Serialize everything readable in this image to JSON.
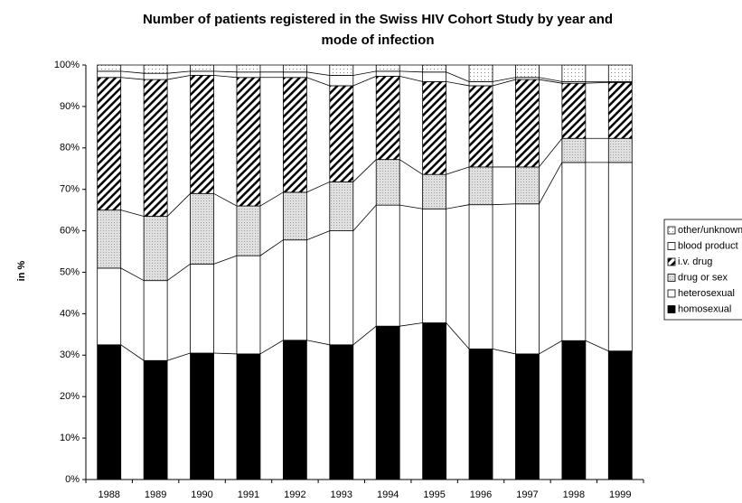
{
  "chart_data": {
    "type": "stacked_bar",
    "title": [
      "Number of patients registered in the Swiss HIV Cohort Study by year and",
      "mode of infection"
    ],
    "y_label": "in %",
    "categories": [
      "1988",
      "1989",
      "1990",
      "1991",
      "1992",
      "1993",
      "1994",
      "1995",
      "1996",
      "1997",
      "1998",
      "1999"
    ],
    "series": [
      {
        "name": "homosexual",
        "color": "#000000",
        "pattern": "solid",
        "values": [
          32.5,
          28.7,
          30.5,
          30.3,
          33.6,
          32.5,
          37,
          37.8,
          31.5,
          30.3,
          33.5,
          31
        ]
      },
      {
        "name": "heterosexual",
        "color": "#ffffff",
        "pattern": "solid",
        "values": [
          18.5,
          19.3,
          21.5,
          23.7,
          24.2,
          27.5,
          29.2,
          27.5,
          34.8,
          36.2,
          43,
          45.5
        ]
      },
      {
        "name": "drug or sex",
        "color": "#a0a0a0",
        "pattern": "dots",
        "values": [
          14,
          15.5,
          17,
          12,
          11.5,
          11.8,
          11,
          8.3,
          9.1,
          8.9,
          5.8,
          5.8
        ]
      },
      {
        "name": "i.v. drug",
        "color": "#000000",
        "pattern": "hatch",
        "values": [
          32,
          33,
          28.5,
          31,
          27.7,
          23.2,
          20.1,
          22.4,
          19.6,
          21.1,
          13.3,
          13.5
        ]
      },
      {
        "name": "blood product",
        "color": "#ffffff",
        "pattern": "solid",
        "values": [
          1.5,
          1.5,
          1,
          1.3,
          1.3,
          2.5,
          1.2,
          2.3,
          1,
          0.5,
          0.4,
          0.2
        ]
      },
      {
        "name": "other/unknown",
        "color": "#808080",
        "pattern": "sparse",
        "values": [
          1.5,
          2,
          1.5,
          1.7,
          1.7,
          2.5,
          1.5,
          1.7,
          4,
          3,
          4,
          4
        ]
      }
    ],
    "ylim": [
      0,
      100
    ],
    "yticks": [
      {
        "value": 0,
        "label": "0%"
      },
      {
        "value": 10,
        "label": "10%"
      },
      {
        "value": 20,
        "label": "20%"
      },
      {
        "value": 30,
        "label": "30%"
      },
      {
        "value": 40,
        "label": "40%"
      },
      {
        "value": 50,
        "label": "50%"
      },
      {
        "value": 60,
        "label": "60%"
      },
      {
        "value": 70,
        "label": "70%"
      },
      {
        "value": 80,
        "label": "80%"
      },
      {
        "value": 90,
        "label": "90%"
      },
      {
        "value": 100,
        "label": "100%"
      }
    ],
    "legend": "right"
  }
}
